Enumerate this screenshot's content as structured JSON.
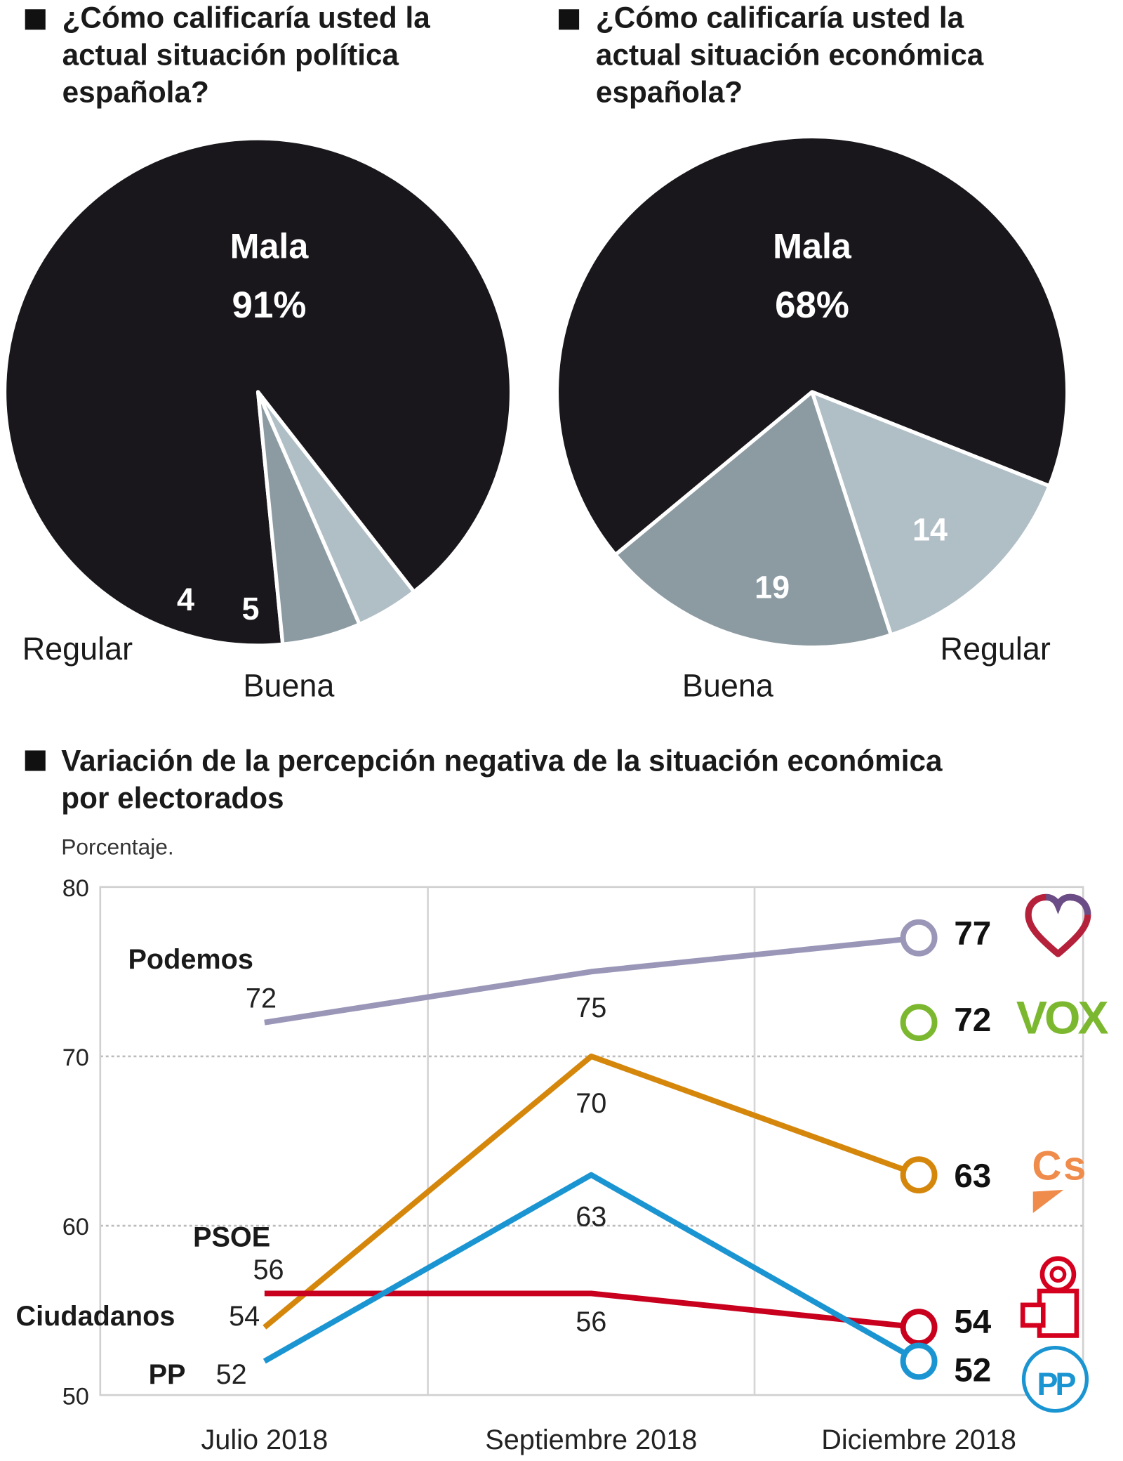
{
  "chart_data": [
    {
      "type": "pie",
      "title": [
        "¿Cómo calificaría usted la",
        "actual situación política",
        "española?"
      ],
      "slices": [
        {
          "label": "Mala",
          "value": 91,
          "display": "91%",
          "color": "#19171b"
        },
        {
          "label": "Regular",
          "value": 4,
          "display": "4",
          "color": "#b0bec6"
        },
        {
          "label": "Buena",
          "value": 5,
          "display": "5",
          "color": "#8c9aa2"
        }
      ]
    },
    {
      "type": "pie",
      "title": [
        "¿Cómo calificaría usted la",
        "actual situación económica",
        "española?"
      ],
      "slices": [
        {
          "label": "Mala",
          "value": 68,
          "display": "68%",
          "color": "#19171b"
        },
        {
          "label": "Regular",
          "value": 14,
          "display": "14",
          "color": "#b0bec6"
        },
        {
          "label": "Buena",
          "value": 19,
          "display": "19",
          "color": "#8c9aa2"
        }
      ]
    },
    {
      "type": "line",
      "title": [
        "Variación de la percepción negativa de la situación económica",
        "por electorados"
      ],
      "subtitle": "Porcentaje.",
      "categories": [
        "Julio 2018",
        "Septiembre 2018",
        "Diciembre 2018"
      ],
      "ylim": [
        50,
        80
      ],
      "yticks": [
        50,
        60,
        70,
        80
      ],
      "grid": true,
      "series": [
        {
          "name": "Podemos",
          "values": [
            72,
            75,
            77
          ],
          "color": "#9a96b8",
          "logo": "podemos-heart"
        },
        {
          "name": "Vox",
          "values": [
            null,
            null,
            72
          ],
          "color": "#7cb82f",
          "logo": "vox",
          "logo_text": "VOX"
        },
        {
          "name": "Ciudadanos",
          "values": [
            54,
            70,
            63
          ],
          "color": "#d5870c",
          "logo": "ciudadanos",
          "logo_text": "Cs"
        },
        {
          "name": "PSOE",
          "values": [
            56,
            56,
            54
          ],
          "color": "#c8001e",
          "logo": "psoe-rose-fist"
        },
        {
          "name": "PP",
          "values": [
            52,
            63,
            52
          ],
          "color": "#1a95d2",
          "logo": "pp-circle",
          "logo_text": "PP"
        }
      ]
    }
  ]
}
